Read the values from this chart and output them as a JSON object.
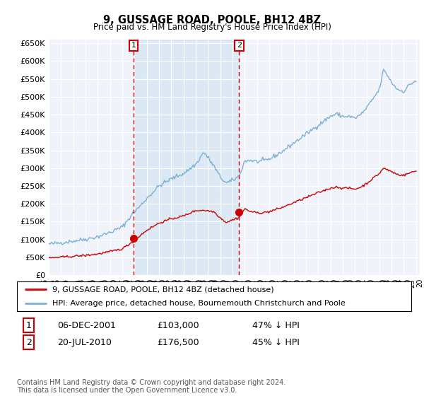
{
  "title": "9, GUSSAGE ROAD, POOLE, BH12 4BZ",
  "subtitle": "Price paid vs. HM Land Registry's House Price Index (HPI)",
  "legend_line1": "9, GUSSAGE ROAD, POOLE, BH12 4BZ (detached house)",
  "legend_line2": "HPI: Average price, detached house, Bournemouth Christchurch and Poole",
  "table_row1": [
    "1",
    "06-DEC-2001",
    "£103,000",
    "47% ↓ HPI"
  ],
  "table_row2": [
    "2",
    "20-JUL-2010",
    "£176,500",
    "45% ↓ HPI"
  ],
  "footnote": "Contains HM Land Registry data © Crown copyright and database right 2024.\nThis data is licensed under the Open Government Licence v3.0.",
  "sale_color": "#cc0000",
  "hpi_color": "#7bafd4",
  "shade_color": "#dce9f5",
  "marker1_x": 2001.92,
  "marker1_y": 103000,
  "marker2_x": 2010.55,
  "marker2_y": 176500,
  "ylim": [
    0,
    660000
  ],
  "yticks": [
    0,
    50000,
    100000,
    150000,
    200000,
    250000,
    300000,
    350000,
    400000,
    450000,
    500000,
    550000,
    600000,
    650000
  ],
  "xlim_start": 1995.3,
  "xlim_end": 2025.3,
  "plot_bg": "#f0f4fa",
  "grid_color": "#ffffff",
  "fig_bg": "#ffffff"
}
